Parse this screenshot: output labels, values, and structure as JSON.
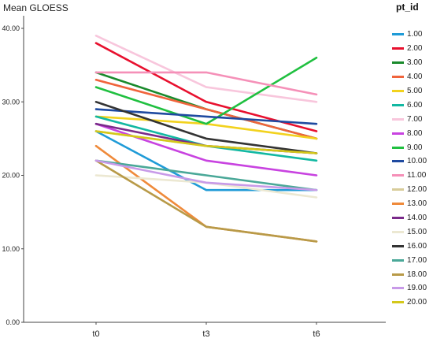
{
  "chart_data": {
    "type": "line",
    "ylabel": "Mean GLOESS",
    "xlabel": "",
    "categories": [
      "t0",
      "t3",
      "t6"
    ],
    "ylim": [
      0,
      40
    ],
    "yticks": [
      "0.00",
      "10.00",
      "20.00",
      "30.00",
      "40.00"
    ],
    "grid": false,
    "legend_title": "pt_id",
    "legend_position": "right",
    "series": [
      {
        "name": "1.00",
        "color": "#1f9bd7",
        "values": [
          26,
          18,
          18
        ]
      },
      {
        "name": "2.00",
        "color": "#e8102e",
        "values": [
          38,
          30,
          26
        ]
      },
      {
        "name": "3.00",
        "color": "#1a8a2c",
        "values": [
          34,
          29,
          25
        ]
      },
      {
        "name": "4.00",
        "color": "#f0643c",
        "values": [
          33,
          29,
          25
        ]
      },
      {
        "name": "5.00",
        "color": "#f2d21e",
        "values": [
          28,
          27,
          25
        ]
      },
      {
        "name": "6.00",
        "color": "#12b8a2",
        "values": [
          28,
          24,
          22
        ]
      },
      {
        "name": "7.00",
        "color": "#f8c6dc",
        "values": [
          39,
          32,
          30
        ]
      },
      {
        "name": "8.00",
        "color": "#c843e0",
        "values": [
          27,
          22,
          20
        ]
      },
      {
        "name": "9.00",
        "color": "#20c040",
        "values": [
          32,
          27,
          36
        ]
      },
      {
        "name": "10.00",
        "color": "#1f4aa0",
        "values": [
          29,
          28,
          27
        ]
      },
      {
        "name": "11.00",
        "color": "#f590b8",
        "values": [
          34,
          34,
          31
        ]
      },
      {
        "name": "12.00",
        "color": "#d8cc9a",
        "values": [
          26,
          24,
          23
        ]
      },
      {
        "name": "13.00",
        "color": "#ef8a3a",
        "values": [
          24,
          13,
          11
        ]
      },
      {
        "name": "14.00",
        "color": "#7a2a8a",
        "values": [
          27,
          24,
          23
        ]
      },
      {
        "name": "15.00",
        "color": "#ece8d2",
        "values": [
          20,
          19,
          17
        ]
      },
      {
        "name": "16.00",
        "color": "#333333",
        "values": [
          30,
          25,
          23
        ]
      },
      {
        "name": "17.00",
        "color": "#4aa898",
        "values": [
          22,
          20,
          18
        ]
      },
      {
        "name": "18.00",
        "color": "#b89a48",
        "values": [
          22,
          13,
          11
        ]
      },
      {
        "name": "19.00",
        "color": "#c89ae8",
        "values": [
          22,
          19,
          18
        ]
      },
      {
        "name": "20.00",
        "color": "#d4c81a",
        "values": [
          26,
          24,
          23
        ]
      }
    ]
  }
}
